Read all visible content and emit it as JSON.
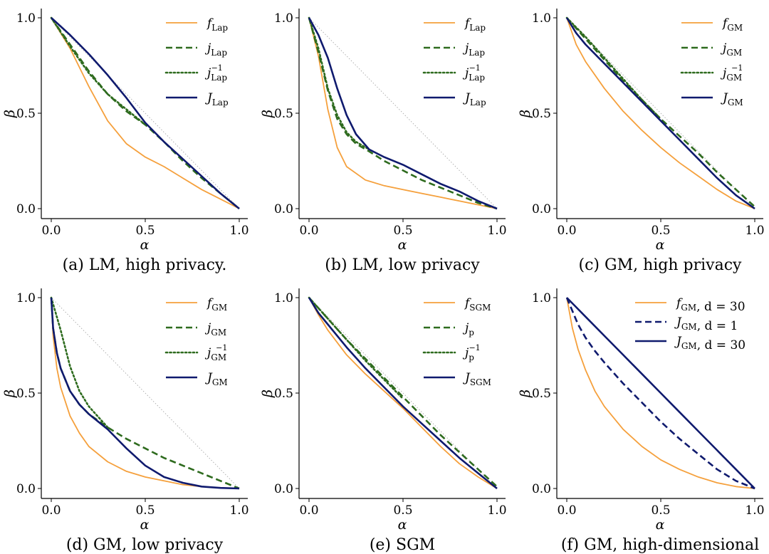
{
  "colors": {
    "orange": "#f5a03c",
    "green": "#2e6b1e",
    "navy": "#0f1a6e",
    "ref": "#b0b0b0"
  },
  "chart_data": [
    {
      "type": "line",
      "caption": "(a) LM, high privacy.",
      "xlabel": "α",
      "ylabel": "β",
      "xlim": [
        0,
        1
      ],
      "ylim": [
        0,
        1
      ],
      "xticks": [
        "0.0",
        "0.5",
        "1.0"
      ],
      "yticks": [
        "0.0",
        "0.5",
        "1.0"
      ],
      "legend_position": "top-right",
      "series": [
        {
          "name": "f",
          "sub": "Lap",
          "sup": "",
          "rest": "",
          "color": "orange",
          "style": "solid",
          "width": 1.8,
          "x": [
            0,
            0.1,
            0.2,
            0.3,
            0.4,
            0.5,
            0.6,
            0.7,
            0.8,
            0.9,
            1.0
          ],
          "y": [
            1.0,
            0.84,
            0.64,
            0.46,
            0.34,
            0.27,
            0.22,
            0.16,
            0.1,
            0.05,
            0.0
          ]
        },
        {
          "name": "j",
          "sub": "Lap",
          "sup": "",
          "rest": "",
          "color": "green",
          "style": "dashed",
          "width": 2.6,
          "x": [
            0,
            0.1,
            0.2,
            0.3,
            0.4,
            0.5,
            0.6,
            0.7,
            0.8,
            0.9,
            1.0
          ],
          "y": [
            1.0,
            0.86,
            0.72,
            0.6,
            0.51,
            0.44,
            0.35,
            0.25,
            0.16,
            0.08,
            0.0
          ]
        },
        {
          "name": "j",
          "sub": "Lap",
          "sup": "−1",
          "rest": "",
          "color": "green",
          "style": "dotted",
          "width": 2.6,
          "x": [
            0,
            0.1,
            0.2,
            0.3,
            0.4,
            0.5
          ],
          "y": [
            1.0,
            0.85,
            0.71,
            0.6,
            0.52,
            0.44
          ]
        },
        {
          "name": "J",
          "sub": "Lap",
          "sup": "",
          "rest": "",
          "color": "navy",
          "style": "solid",
          "width": 2.6,
          "x": [
            0,
            0.1,
            0.2,
            0.3,
            0.4,
            0.5,
            0.6,
            0.7,
            0.8,
            0.9,
            1.0
          ],
          "y": [
            1.0,
            0.91,
            0.81,
            0.7,
            0.58,
            0.45,
            0.35,
            0.26,
            0.17,
            0.08,
            0.0
          ]
        }
      ]
    },
    {
      "type": "line",
      "caption": "(b) LM, low privacy",
      "xlabel": "α",
      "ylabel": "β",
      "xlim": [
        0,
        1
      ],
      "ylim": [
        0,
        1
      ],
      "xticks": [
        "0.0",
        "0.5",
        "1.0"
      ],
      "yticks": [
        "0.0",
        "0.5",
        "1.0"
      ],
      "legend_position": "top-right",
      "series": [
        {
          "name": "f",
          "sub": "Lap",
          "sup": "",
          "rest": "",
          "color": "orange",
          "style": "solid",
          "width": 1.8,
          "x": [
            0,
            0.05,
            0.1,
            0.15,
            0.2,
            0.3,
            0.4,
            0.5,
            0.6,
            0.7,
            0.8,
            0.9,
            1.0
          ],
          "y": [
            1.0,
            0.8,
            0.52,
            0.32,
            0.22,
            0.15,
            0.12,
            0.1,
            0.08,
            0.06,
            0.04,
            0.02,
            0.0
          ]
        },
        {
          "name": "j",
          "sub": "Lap",
          "sup": "",
          "rest": "",
          "color": "green",
          "style": "dashed",
          "width": 2.6,
          "x": [
            0,
            0.05,
            0.1,
            0.15,
            0.2,
            0.25,
            0.32,
            0.4,
            0.5,
            0.6,
            0.7,
            0.8,
            0.9,
            1.0
          ],
          "y": [
            1.0,
            0.82,
            0.62,
            0.47,
            0.39,
            0.34,
            0.3,
            0.25,
            0.2,
            0.15,
            0.11,
            0.07,
            0.03,
            0.0
          ]
        },
        {
          "name": "j",
          "sub": "Lap",
          "sup": "−1",
          "rest": "",
          "color": "green",
          "style": "dotted",
          "width": 2.6,
          "x": [
            0,
            0.05,
            0.1,
            0.15,
            0.2,
            0.25,
            0.32
          ],
          "y": [
            1.0,
            0.84,
            0.63,
            0.49,
            0.4,
            0.35,
            0.31
          ]
        },
        {
          "name": "J",
          "sub": "Lap",
          "sup": "",
          "rest": "",
          "color": "navy",
          "style": "solid",
          "width": 2.6,
          "x": [
            0,
            0.05,
            0.1,
            0.15,
            0.2,
            0.25,
            0.32,
            0.4,
            0.5,
            0.6,
            0.7,
            0.8,
            0.9,
            1.0
          ],
          "y": [
            1.0,
            0.91,
            0.79,
            0.63,
            0.49,
            0.39,
            0.31,
            0.27,
            0.23,
            0.18,
            0.13,
            0.09,
            0.04,
            0.0
          ]
        }
      ]
    },
    {
      "type": "line",
      "caption": "(c) GM, high privacy",
      "xlabel": "α",
      "ylabel": "β",
      "xlim": [
        0,
        1
      ],
      "ylim": [
        0,
        1
      ],
      "xticks": [
        "0.0",
        "0.5",
        "1.0"
      ],
      "yticks": [
        "0.0",
        "0.5",
        "1.0"
      ],
      "legend_position": "top-right",
      "series": [
        {
          "name": "f",
          "sub": "GM",
          "sup": "",
          "rest": "",
          "color": "orange",
          "style": "solid",
          "width": 1.8,
          "x": [
            0,
            0.05,
            0.1,
            0.2,
            0.3,
            0.4,
            0.5,
            0.6,
            0.7,
            0.8,
            0.9,
            1.0
          ],
          "y": [
            1.0,
            0.86,
            0.77,
            0.63,
            0.51,
            0.41,
            0.32,
            0.24,
            0.17,
            0.1,
            0.04,
            0.0
          ]
        },
        {
          "name": "j",
          "sub": "GM",
          "sup": "",
          "rest": "",
          "color": "green",
          "style": "dashed",
          "width": 2.6,
          "x": [
            0,
            0.1,
            0.2,
            0.3,
            0.4,
            0.5,
            0.6,
            0.7,
            0.8,
            0.9,
            1.0
          ],
          "y": [
            1.0,
            0.89,
            0.78,
            0.67,
            0.57,
            0.47,
            0.38,
            0.29,
            0.19,
            0.1,
            0.01
          ]
        },
        {
          "name": "j",
          "sub": "GM",
          "sup": "−1",
          "rest": "",
          "color": "green",
          "style": "dotted",
          "width": 2.6,
          "x": [
            0,
            0.1,
            0.2,
            0.3,
            0.4,
            0.5
          ],
          "y": [
            1.0,
            0.9,
            0.79,
            0.68,
            0.57,
            0.47
          ]
        },
        {
          "name": "J",
          "sub": "GM",
          "sup": "",
          "rest": "",
          "color": "navy",
          "style": "solid",
          "width": 2.6,
          "x": [
            0,
            0.05,
            0.1,
            0.2,
            0.3,
            0.4,
            0.5,
            0.6,
            0.7,
            0.8,
            0.9,
            1.0
          ],
          "y": [
            1.0,
            0.92,
            0.86,
            0.76,
            0.66,
            0.56,
            0.46,
            0.36,
            0.26,
            0.16,
            0.07,
            0.0
          ]
        }
      ]
    },
    {
      "type": "line",
      "caption": "(d) GM, low privacy",
      "xlabel": "α",
      "ylabel": "β",
      "xlim": [
        0,
        1
      ],
      "ylim": [
        0,
        1
      ],
      "xticks": [
        "0.0",
        "0.5",
        "1.0"
      ],
      "yticks": [
        "0.0",
        "0.5",
        "1.0"
      ],
      "legend_position": "top-right",
      "series": [
        {
          "name": "f",
          "sub": "GM",
          "sup": "",
          "rest": "",
          "color": "orange",
          "style": "solid",
          "width": 1.8,
          "x": [
            0,
            0.01,
            0.03,
            0.05,
            0.1,
            0.15,
            0.2,
            0.3,
            0.4,
            0.5,
            0.6,
            0.7,
            0.8,
            0.9,
            1.0
          ],
          "y": [
            1.0,
            0.8,
            0.63,
            0.53,
            0.38,
            0.29,
            0.22,
            0.14,
            0.09,
            0.06,
            0.04,
            0.02,
            0.01,
            0.003,
            0.0
          ]
        },
        {
          "name": "j",
          "sub": "GM",
          "sup": "",
          "rest": "",
          "color": "green",
          "style": "dashed",
          "width": 2.6,
          "x": [
            0,
            0.01,
            0.03,
            0.05,
            0.1,
            0.15,
            0.2,
            0.3,
            0.4,
            0.5,
            0.6,
            0.7,
            0.8,
            0.9,
            1.0
          ],
          "y": [
            1.0,
            0.84,
            0.71,
            0.63,
            0.51,
            0.44,
            0.39,
            0.32,
            0.26,
            0.21,
            0.16,
            0.12,
            0.08,
            0.04,
            0.0
          ]
        },
        {
          "name": "j",
          "sub": "GM",
          "sup": "−1",
          "rest": "",
          "color": "green",
          "style": "dotted",
          "width": 2.6,
          "x": [
            0,
            0.05,
            0.1,
            0.15,
            0.2,
            0.3
          ],
          "y": [
            1.0,
            0.83,
            0.64,
            0.51,
            0.43,
            0.32
          ]
        },
        {
          "name": "J",
          "sub": "GM",
          "sup": "",
          "rest": "",
          "color": "navy",
          "style": "solid",
          "width": 2.6,
          "x": [
            0,
            0.01,
            0.03,
            0.05,
            0.1,
            0.15,
            0.2,
            0.3,
            0.4,
            0.5,
            0.6,
            0.7,
            0.8,
            0.9,
            1.0
          ],
          "y": [
            1.0,
            0.84,
            0.71,
            0.63,
            0.51,
            0.44,
            0.39,
            0.31,
            0.21,
            0.12,
            0.06,
            0.03,
            0.01,
            0.003,
            0.0
          ]
        }
      ]
    },
    {
      "type": "line",
      "caption": "(e) SGM",
      "xlabel": "α",
      "ylabel": "β",
      "xlim": [
        0,
        1
      ],
      "ylim": [
        0,
        1
      ],
      "xticks": [
        "0.0",
        "0.5",
        "1.0"
      ],
      "yticks": [
        "0.0",
        "0.5",
        "1.0"
      ],
      "legend_position": "top-right",
      "series": [
        {
          "name": "f",
          "sub": "SGM",
          "sup": "",
          "rest": "",
          "color": "orange",
          "style": "solid",
          "width": 1.8,
          "x": [
            0,
            0.05,
            0.1,
            0.2,
            0.3,
            0.4,
            0.5,
            0.6,
            0.7,
            0.8,
            0.9,
            1.0
          ],
          "y": [
            1.0,
            0.91,
            0.83,
            0.7,
            0.6,
            0.51,
            0.42,
            0.32,
            0.22,
            0.13,
            0.06,
            0.0
          ]
        },
        {
          "name": "j",
          "sub": "p",
          "sup": "",
          "rest": "",
          "color": "green",
          "style": "dashed",
          "width": 2.6,
          "x": [
            0,
            0.1,
            0.2,
            0.3,
            0.4,
            0.5,
            0.6,
            0.7,
            0.8,
            0.9,
            1.0
          ],
          "y": [
            1.0,
            0.89,
            0.78,
            0.68,
            0.58,
            0.48,
            0.38,
            0.28,
            0.19,
            0.1,
            0.01
          ]
        },
        {
          "name": "j",
          "sub": "p",
          "sup": "−1",
          "rest": "",
          "color": "green",
          "style": "dotted",
          "width": 2.6,
          "x": [
            0,
            0.1,
            0.2,
            0.3,
            0.4,
            0.5
          ],
          "y": [
            1.0,
            0.89,
            0.78,
            0.67,
            0.57,
            0.47
          ]
        },
        {
          "name": "J",
          "sub": "SGM",
          "sup": "",
          "rest": "",
          "color": "navy",
          "style": "solid",
          "width": 2.6,
          "x": [
            0,
            0.05,
            0.1,
            0.2,
            0.3,
            0.4,
            0.5,
            0.6,
            0.7,
            0.8,
            0.9,
            1.0
          ],
          "y": [
            1.0,
            0.92,
            0.86,
            0.74,
            0.63,
            0.53,
            0.43,
            0.34,
            0.25,
            0.16,
            0.08,
            0.0
          ]
        }
      ]
    },
    {
      "type": "line",
      "caption": "(f) GM, high-dimensional",
      "xlabel": "α",
      "ylabel": "β",
      "xlim": [
        0,
        1
      ],
      "ylim": [
        0,
        1
      ],
      "xticks": [
        "0.0",
        "0.5",
        "1.0"
      ],
      "yticks": [
        "0.0",
        "0.5",
        "1.0"
      ],
      "legend_position": "top-right",
      "series": [
        {
          "name": "f",
          "sub": "GM",
          "sup": "",
          "rest": ", d = 30",
          "color": "orange",
          "style": "solid",
          "width": 1.8,
          "x": [
            0,
            0.03,
            0.06,
            0.1,
            0.15,
            0.2,
            0.3,
            0.4,
            0.5,
            0.6,
            0.7,
            0.8,
            0.9,
            1.0
          ],
          "y": [
            1.0,
            0.84,
            0.73,
            0.62,
            0.51,
            0.43,
            0.31,
            0.22,
            0.15,
            0.1,
            0.06,
            0.03,
            0.01,
            0.0
          ]
        },
        {
          "name": "J",
          "sub": "GM",
          "sup": "",
          "rest": ", d = 1",
          "color": "navy",
          "style": "dashed",
          "width": 2.6,
          "x": [
            0,
            0.03,
            0.06,
            0.1,
            0.15,
            0.2,
            0.3,
            0.4,
            0.5,
            0.6,
            0.7,
            0.8,
            0.9,
            1.0
          ],
          "y": [
            1.0,
            0.93,
            0.86,
            0.79,
            0.72,
            0.66,
            0.55,
            0.45,
            0.35,
            0.26,
            0.18,
            0.1,
            0.04,
            0.0
          ]
        },
        {
          "name": "J",
          "sub": "GM",
          "sup": "",
          "rest": ", d = 30",
          "color": "navy",
          "style": "solid",
          "width": 2.6,
          "x": [
            0,
            0.05,
            0.1,
            0.2,
            0.3,
            0.4,
            0.5,
            0.6,
            0.7,
            0.8,
            0.9,
            1.0
          ],
          "y": [
            1.0,
            0.95,
            0.9,
            0.8,
            0.7,
            0.6,
            0.5,
            0.4,
            0.3,
            0.2,
            0.1,
            0.0
          ]
        }
      ]
    }
  ]
}
